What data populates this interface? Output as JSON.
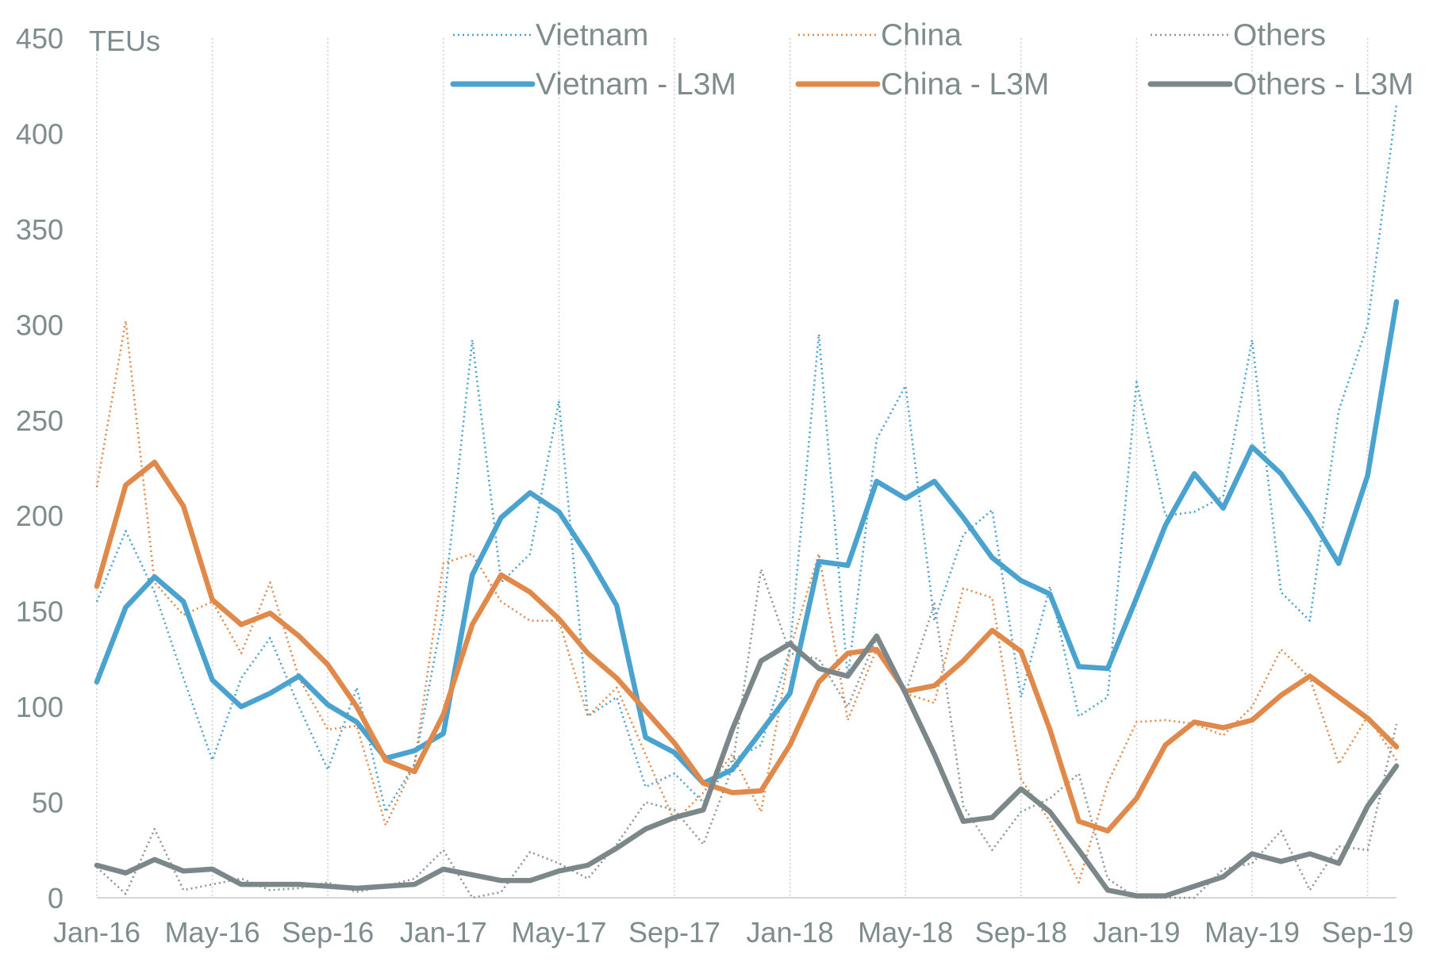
{
  "chart_data": {
    "type": "line",
    "y_unit_label": "TEUs",
    "ylim": [
      0,
      450
    ],
    "y_ticks": [
      0,
      50,
      100,
      150,
      200,
      250,
      300,
      350,
      400,
      450
    ],
    "x_tick_labels": [
      "Jan-16",
      "May-16",
      "Sep-16",
      "Jan-17",
      "May-17",
      "Sep-17",
      "Jan-18",
      "May-18",
      "Sep-18",
      "Jan-19",
      "May-19",
      "Sep-19"
    ],
    "x": [
      "Jan-16",
      "Feb-16",
      "Mar-16",
      "Apr-16",
      "May-16",
      "Jun-16",
      "Jul-16",
      "Aug-16",
      "Sep-16",
      "Oct-16",
      "Nov-16",
      "Dec-16",
      "Jan-17",
      "Feb-17",
      "Mar-17",
      "Apr-17",
      "May-17",
      "Jun-17",
      "Jul-17",
      "Aug-17",
      "Sep-17",
      "Oct-17",
      "Nov-17",
      "Dec-17",
      "Jan-18",
      "Feb-18",
      "Mar-18",
      "Apr-18",
      "May-18",
      "Jun-18",
      "Jul-18",
      "Aug-18",
      "Sep-18",
      "Oct-18",
      "Nov-18",
      "Dec-18",
      "Jan-19",
      "Feb-19",
      "Mar-19",
      "Apr-19",
      "May-19",
      "Jun-19",
      "Jul-19",
      "Aug-19",
      "Sep-19",
      "Oct-19"
    ],
    "grid": "vertical-dotted",
    "legend_position": "top",
    "series": [
      {
        "name": "Vietnam",
        "style": "dotted",
        "color": "#4aa3cf",
        "values": [
          155,
          192,
          160,
          115,
          72,
          115,
          136,
          100,
          67,
          110,
          45,
          70,
          150,
          292,
          165,
          180,
          260,
          95,
          105,
          58,
          65,
          50,
          72,
          80,
          130,
          295,
          115,
          240,
          268,
          145,
          190,
          203,
          105,
          163,
          95,
          105,
          270,
          200,
          202,
          210,
          292,
          160,
          145,
          255,
          300,
          415
        ]
      },
      {
        "name": "China",
        "style": "dotted",
        "color": "#e0894a",
        "values": [
          215,
          302,
          165,
          148,
          155,
          128,
          165,
          115,
          88,
          90,
          38,
          70,
          175,
          180,
          155,
          145,
          145,
          95,
          110,
          75,
          40,
          55,
          75,
          45,
          130,
          180,
          93,
          130,
          107,
          102,
          162,
          157,
          62,
          40,
          8,
          60,
          92,
          93,
          91,
          85,
          100,
          130,
          115,
          70,
          95,
          72
        ]
      },
      {
        "name": "Others",
        "style": "dotted",
        "color": "#8a9699",
        "values": [
          16,
          2,
          36,
          4,
          7,
          10,
          4,
          5,
          8,
          3,
          6,
          10,
          25,
          0,
          3,
          24,
          18,
          10,
          28,
          50,
          46,
          28,
          68,
          172,
          128,
          125,
          100,
          136,
          107,
          154,
          48,
          25,
          45,
          52,
          65,
          10,
          0,
          0,
          0,
          15,
          18,
          35,
          4,
          27,
          25,
          91
        ]
      },
      {
        "name": "Vietnam - L3M",
        "style": "solid",
        "color": "#4aa3cf",
        "values": [
          113,
          152,
          168,
          155,
          114,
          100,
          107,
          116,
          101,
          92,
          73,
          77,
          86,
          169,
          199,
          212,
          202,
          179,
          153,
          84,
          76,
          60,
          67,
          87,
          107,
          176,
          174,
          218,
          209,
          218,
          199,
          178,
          166,
          159,
          121,
          120,
          157,
          195,
          222,
          204,
          236,
          222,
          200,
          175,
          221,
          312
        ]
      },
      {
        "name": "China - L3M",
        "style": "solid",
        "color": "#e0894a",
        "values": [
          163,
          216,
          228,
          205,
          156,
          143,
          149,
          137,
          122,
          100,
          72,
          66,
          96,
          143,
          169,
          160,
          146,
          128,
          115,
          98,
          81,
          60,
          55,
          56,
          80,
          113,
          128,
          130,
          108,
          111,
          124,
          140,
          129,
          88,
          40,
          35,
          52,
          80,
          92,
          89,
          93,
          106,
          116,
          105,
          94,
          79
        ]
      },
      {
        "name": "Others - L3M",
        "style": "solid",
        "color": "#7b8789",
        "values": [
          17,
          13,
          20,
          14,
          15,
          7,
          7,
          7,
          6,
          5,
          6,
          7,
          15,
          12,
          9,
          9,
          14,
          17,
          26,
          36,
          42,
          46,
          88,
          124,
          133,
          120,
          116,
          137,
          107,
          75,
          40,
          42,
          57,
          45,
          25,
          4,
          1,
          1,
          6,
          11,
          23,
          19,
          23,
          18,
          48,
          69
        ]
      }
    ]
  }
}
